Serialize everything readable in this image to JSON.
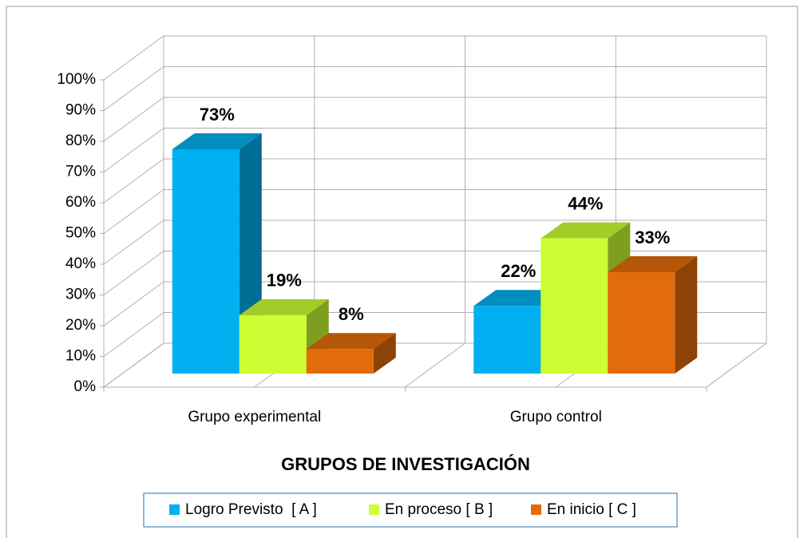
{
  "chart_data": {
    "type": "bar3d",
    "categories": [
      "Grupo experimental",
      "Grupo control"
    ],
    "series": [
      {
        "name": "Logro Previsto  [ A ]",
        "color": "#00b0f0",
        "values": [
          73,
          22
        ],
        "value_labels": [
          "73%",
          "22%"
        ]
      },
      {
        "name": "En proceso [ B ]",
        "color": "#ccff33",
        "values": [
          19,
          44
        ],
        "value_labels": [
          "19%",
          "44%"
        ]
      },
      {
        "name": "En inicio [ C ]",
        "color": "#e36c0a",
        "values": [
          8,
          33
        ],
        "value_labels": [
          "8%",
          "33%"
        ]
      }
    ],
    "x_label": "GRUPOS DE INVESTIGACIÓN",
    "ylim": [
      0,
      100
    ],
    "yticks": [
      {
        "value": 0,
        "label": "0%"
      },
      {
        "value": 10,
        "label": "10%"
      },
      {
        "value": 20,
        "label": "20%"
      },
      {
        "value": 30,
        "label": "30%"
      },
      {
        "value": 40,
        "label": "40%"
      },
      {
        "value": 50,
        "label": "50%"
      },
      {
        "value": 60,
        "label": "60%"
      },
      {
        "value": 70,
        "label": "70%"
      },
      {
        "value": 80,
        "label": "80%"
      },
      {
        "value": 90,
        "label": "90%"
      },
      {
        "value": 100,
        "label": "100%"
      }
    ],
    "grid": true,
    "legend": "bottom"
  }
}
